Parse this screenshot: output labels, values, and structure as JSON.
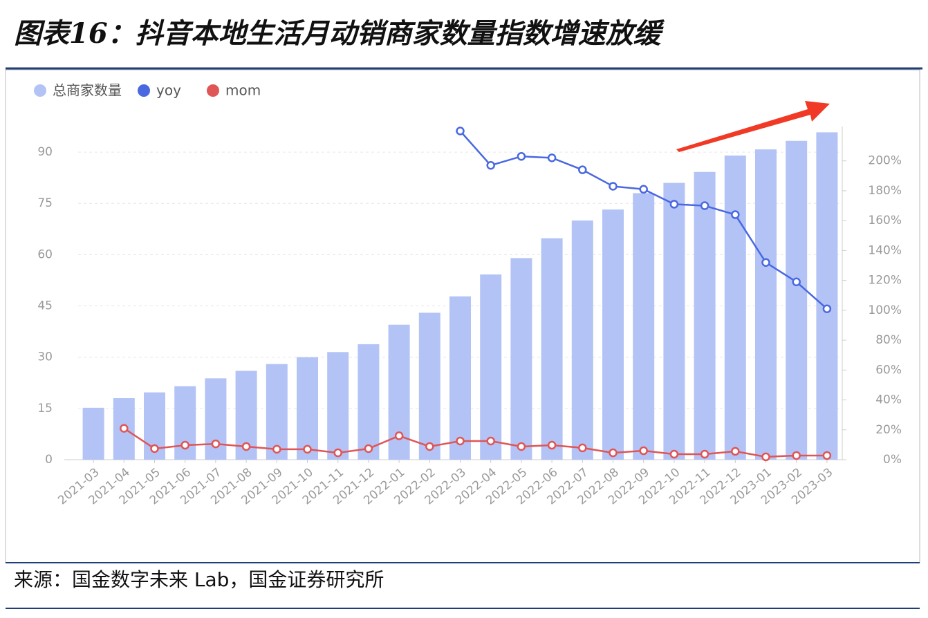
{
  "chart_data": {
    "type": "bar",
    "title": "图表16：抖音本地生活月动销商家数量指数增速放缓",
    "source": "来源：国金数字未来 Lab，国金证券研究所",
    "categories": [
      "2021-03",
      "2021-04",
      "2021-05",
      "2021-06",
      "2021-07",
      "2021-08",
      "2021-09",
      "2021-10",
      "2021-11",
      "2021-12",
      "2022-01",
      "2022-02",
      "2022-03",
      "2022-04",
      "2022-05",
      "2022-06",
      "2022-07",
      "2022-08",
      "2022-09",
      "2022-10",
      "2022-11",
      "2022-12",
      "2023-01",
      "2023-02",
      "2023-03"
    ],
    "series": [
      {
        "name": "总商家数量",
        "type": "bar",
        "color": "#b3c3f5",
        "values": [
          15.2,
          18,
          19.7,
          21.5,
          23.8,
          26,
          28,
          30,
          31.5,
          33.8,
          39.5,
          43,
          47.8,
          54.2,
          59,
          64.8,
          70,
          73.2,
          78,
          81,
          84.2,
          89,
          90.8,
          93.3,
          95.8
        ]
      },
      {
        "name": "yoy",
        "type": "line",
        "axis": "y2",
        "color": "#4a68e0",
        "values": [
          null,
          null,
          null,
          null,
          null,
          null,
          null,
          null,
          null,
          null,
          null,
          null,
          220,
          197,
          203,
          202,
          194,
          183,
          181,
          171,
          170,
          164,
          132,
          119,
          101
        ]
      },
      {
        "name": "mom",
        "type": "line",
        "axis": "y2",
        "color": "#e05555",
        "values": [
          null,
          21,
          7.4,
          9.7,
          10.6,
          8.8,
          7,
          7,
          4.6,
          7.4,
          16,
          8.8,
          12.5,
          12.5,
          8.8,
          9.7,
          7.9,
          4.6,
          6,
          3.7,
          3.7,
          5.6,
          1.9,
          2.8,
          2.8
        ]
      }
    ],
    "ylim": [
      0,
      97.5
    ],
    "yticks": [
      0,
      15,
      30,
      45,
      60,
      75,
      90
    ],
    "y2lim": [
      0,
      223
    ],
    "y2ticks": [
      {
        "value": 0,
        "label": "0%"
      },
      {
        "value": 20,
        "label": "20%"
      },
      {
        "value": 40,
        "label": "40%"
      },
      {
        "value": 60,
        "label": "60%"
      },
      {
        "value": 80,
        "label": "80%"
      },
      {
        "value": 100,
        "label": "100%"
      },
      {
        "value": 120,
        "label": "120%"
      },
      {
        "value": 140,
        "label": "140%"
      },
      {
        "value": 160,
        "label": "160%"
      },
      {
        "value": 180,
        "label": "180%"
      },
      {
        "value": 200,
        "label": "200%"
      }
    ],
    "grid": true,
    "legend": "top-left"
  }
}
